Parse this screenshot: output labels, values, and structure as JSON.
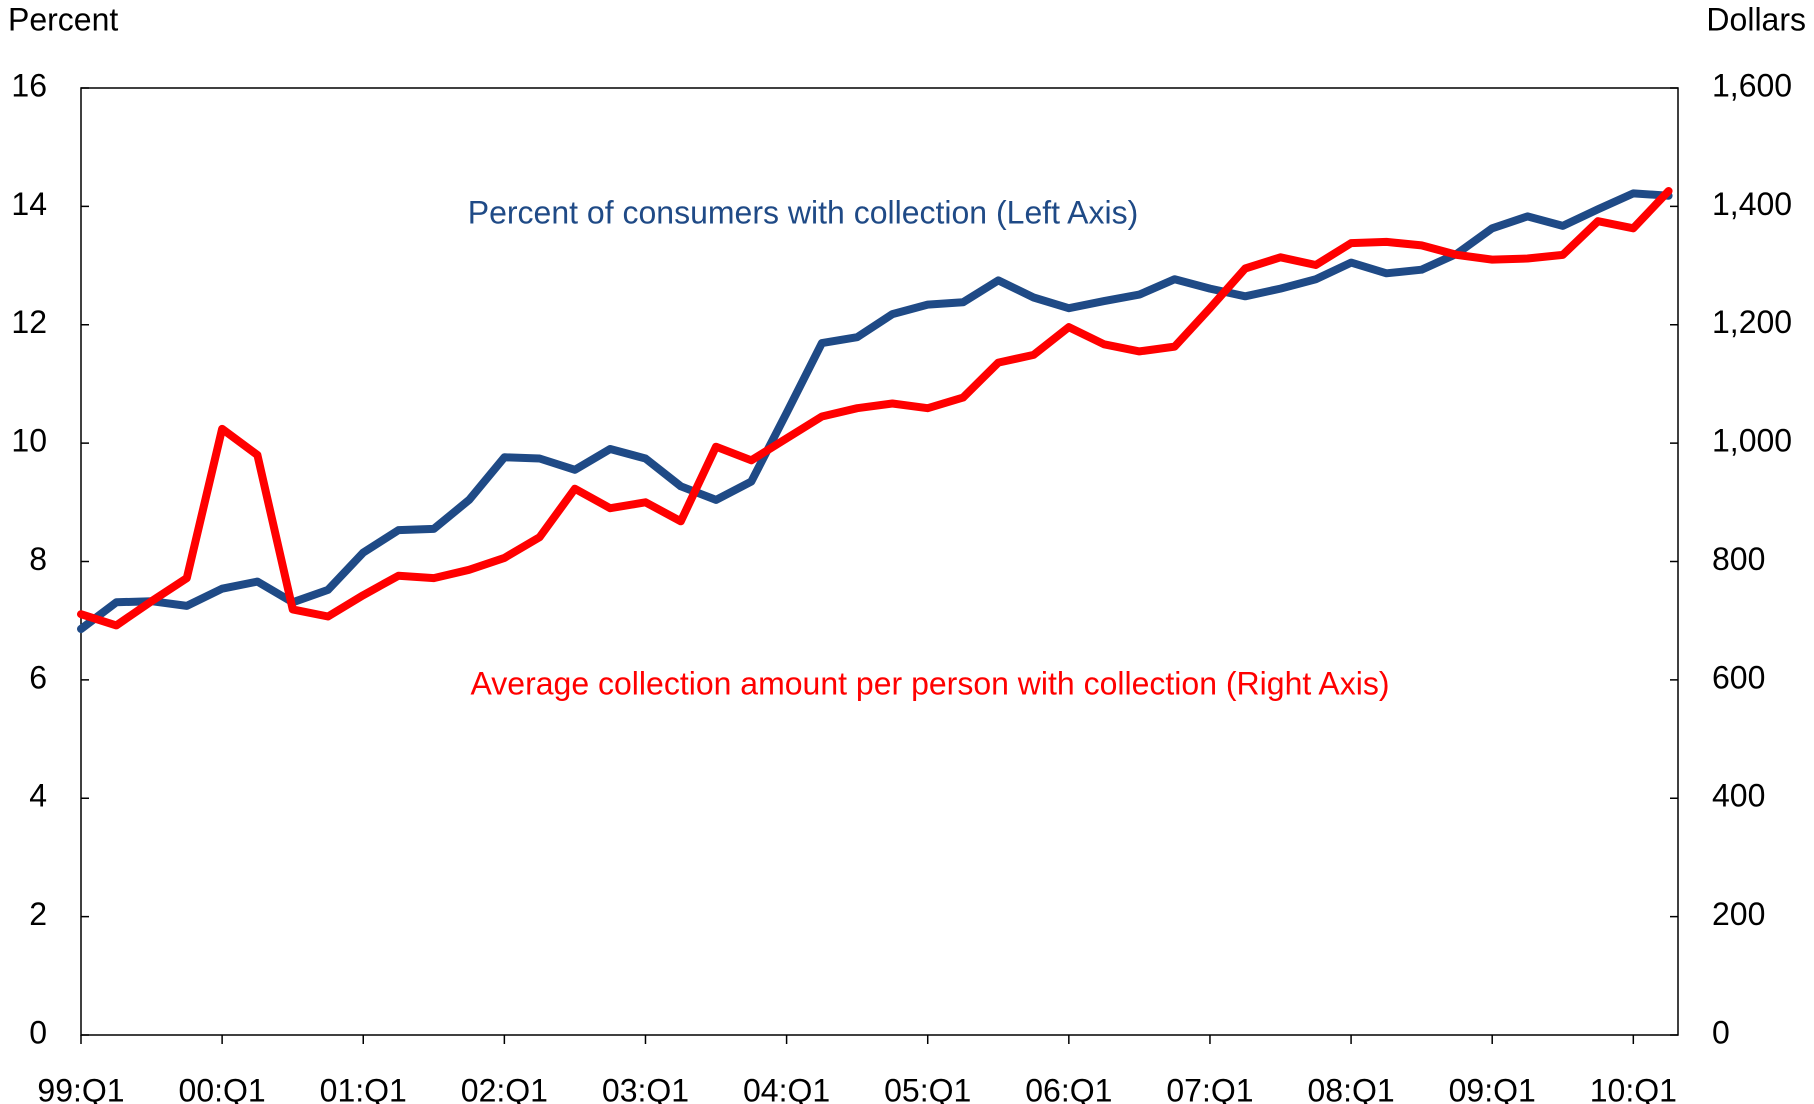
{
  "chart_data": {
    "type": "line",
    "y_label": "Percent",
    "y2_label": "Dollars",
    "annotations": [
      {
        "text": "Percent of consumers with collection (Left Axis)",
        "color": "#1f4a86"
      },
      {
        "text": "Average collection amount per person with collection (Right Axis)",
        "color": "#ff0000"
      }
    ],
    "categories": [
      "99:Q1",
      null,
      null,
      null,
      "00:Q1",
      null,
      null,
      null,
      "01:Q1",
      null,
      null,
      null,
      "02:Q1",
      null,
      null,
      null,
      "03:Q1",
      null,
      null,
      null,
      "04:Q1",
      null,
      null,
      null,
      "05:Q1",
      null,
      null,
      null,
      "06:Q1",
      null,
      null,
      null,
      "07:Q1",
      null,
      null,
      null,
      "08:Q1",
      null,
      null,
      null,
      "09:Q1",
      null,
      null,
      null,
      "10:Q1",
      null
    ],
    "series": [
      {
        "name": "Percent of consumers with collection",
        "color": "#1f4a86",
        "axis": "y",
        "values": [
          6.86,
          7.31,
          7.33,
          7.25,
          7.54,
          7.66,
          7.31,
          7.52,
          8.15,
          8.53,
          8.55,
          9.04,
          9.76,
          9.74,
          9.55,
          9.9,
          9.74,
          9.27,
          9.04,
          9.35,
          10.51,
          11.69,
          11.79,
          12.18,
          12.34,
          12.38,
          12.75,
          12.46,
          12.28,
          12.4,
          12.51,
          12.77,
          12.61,
          12.48,
          12.61,
          12.77,
          13.05,
          12.87,
          12.93,
          13.2,
          13.63,
          13.83,
          13.67,
          13.95,
          14.22,
          14.18
        ]
      },
      {
        "name": "Average collection amount per person with collection",
        "color": "#ff0000",
        "axis": "y2",
        "values": [
          711,
          692,
          733,
          772,
          1024,
          980,
          719,
          707,
          743,
          776,
          772,
          786,
          806,
          841,
          923,
          890,
          900,
          868,
          994,
          971,
          1008,
          1045,
          1059,
          1067,
          1059,
          1077,
          1136,
          1149,
          1196,
          1167,
          1155,
          1163,
          1228,
          1295,
          1314,
          1301,
          1338,
          1340,
          1334,
          1318,
          1310,
          1312,
          1318,
          1375,
          1363,
          1426
        ]
      }
    ],
    "ylim": [
      0,
      16
    ],
    "yticks": [
      0,
      2,
      4,
      6,
      8,
      10,
      12,
      14,
      16
    ],
    "y2lim": [
      0,
      1600
    ],
    "y2ticks": [
      0,
      200,
      400,
      600,
      800,
      {
        "value": 1000,
        "label": "1,000"
      },
      {
        "value": 1200,
        "label": "1,200"
      },
      {
        "value": 1400,
        "label": "1,400"
      },
      {
        "value": 1600,
        "label": "1,600"
      }
    ],
    "grid": false
  }
}
